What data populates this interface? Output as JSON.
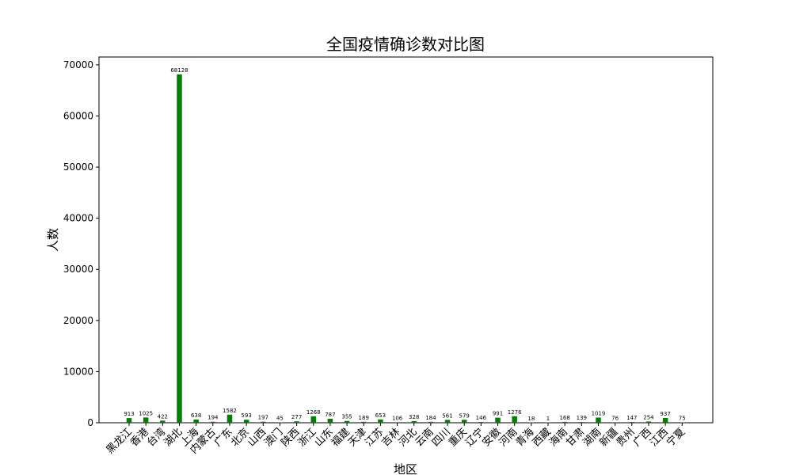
{
  "chart_data": {
    "type": "bar",
    "title": "全国疫情确诊数对比图",
    "xlabel": "地区",
    "ylabel": "人数",
    "categories": [
      "黑龙江",
      "香港",
      "台湾",
      "湖北",
      "上海",
      "内蒙古",
      "广东",
      "北京",
      "山西",
      "澳门",
      "陕西",
      "浙江",
      "山东",
      "福建",
      "天津",
      "江苏",
      "吉林",
      "河北",
      "云南",
      "四川",
      "重庆",
      "辽宁",
      "安徽",
      "河南",
      "青海",
      "西藏",
      "海南",
      "甘肃",
      "湖南",
      "新疆",
      "贵州",
      "广西",
      "江西",
      "宁夏"
    ],
    "values": [
      913,
      1025,
      422,
      68128,
      638,
      194,
      1582,
      593,
      197,
      45,
      277,
      1268,
      787,
      355,
      189,
      653,
      106,
      328,
      184,
      561,
      579,
      146,
      991,
      1276,
      18,
      1,
      168,
      139,
      1019,
      76,
      147,
      254,
      937,
      75
    ],
    "yticks": [
      0,
      10000,
      20000,
      30000,
      40000,
      50000,
      60000,
      70000
    ],
    "ylim": [
      0,
      71534
    ],
    "bar_color": "#008000",
    "grid": false,
    "legend": false
  }
}
